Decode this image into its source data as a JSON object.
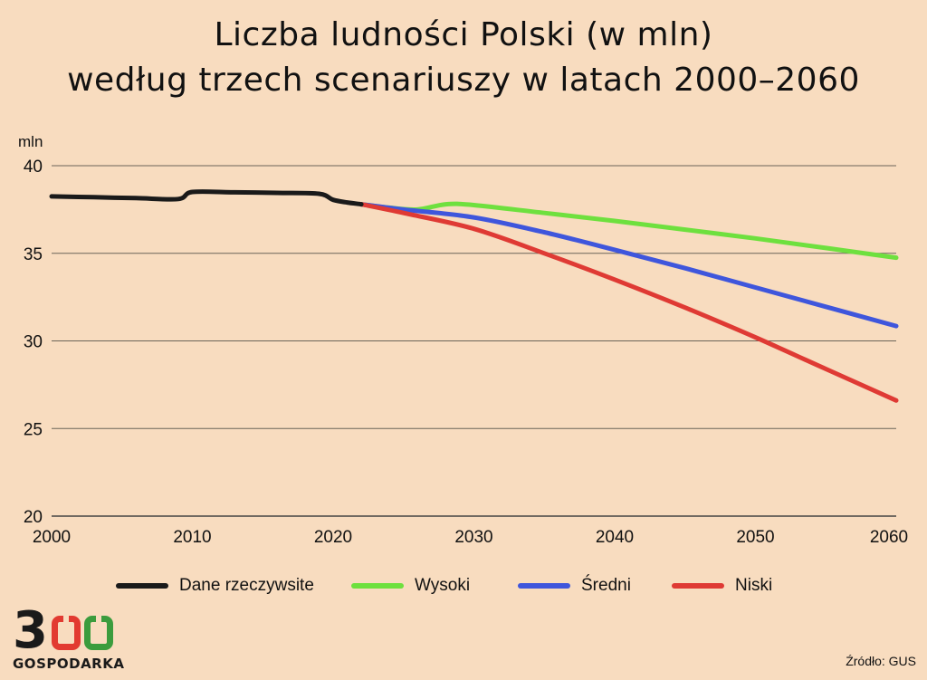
{
  "title_lines": [
    "Liczba ludności Polski (w mln)",
    "według trzech scenariuszy w latach 2000–2060"
  ],
  "logo": {
    "digit": "3",
    "text": "GOSPODARKA"
  },
  "source": "Źródło: GUS",
  "chart_data": {
    "type": "line",
    "title": "Liczba ludności Polski (w mln) według trzech scenariuszy w latach 2000–2060",
    "ylabel": "mln",
    "xlabel": "",
    "xlim": [
      2000,
      2060
    ],
    "ylim": [
      20,
      40
    ],
    "x_ticks": [
      2000,
      2010,
      2020,
      2030,
      2040,
      2050,
      2060
    ],
    "y_ticks": [
      20,
      25,
      30,
      35,
      40
    ],
    "grid": "horizontal",
    "legend_position": "bottom",
    "series": [
      {
        "name": "Dane rzeczywsite",
        "color": "#1a1a1a",
        "points": [
          [
            2000,
            38.25
          ],
          [
            2003,
            38.2
          ],
          [
            2006,
            38.15
          ],
          [
            2009,
            38.1
          ],
          [
            2010,
            38.5
          ],
          [
            2013,
            38.48
          ],
          [
            2016,
            38.45
          ],
          [
            2019,
            38.4
          ],
          [
            2020,
            38.05
          ],
          [
            2021,
            37.9
          ],
          [
            2022,
            37.8
          ]
        ]
      },
      {
        "name": "Wysoki",
        "color": "#6ee03e",
        "points": [
          [
            2022,
            37.8
          ],
          [
            2024,
            37.6
          ],
          [
            2026,
            37.5
          ],
          [
            2028,
            37.8
          ],
          [
            2030,
            37.75
          ],
          [
            2035,
            37.3
          ],
          [
            2040,
            36.85
          ],
          [
            2045,
            36.35
          ],
          [
            2050,
            35.85
          ],
          [
            2055,
            35.3
          ],
          [
            2060,
            34.75
          ]
        ]
      },
      {
        "name": "Średni",
        "color": "#3f56dc",
        "points": [
          [
            2022,
            37.8
          ],
          [
            2025,
            37.5
          ],
          [
            2030,
            37.05
          ],
          [
            2035,
            36.2
          ],
          [
            2040,
            35.2
          ],
          [
            2045,
            34.15
          ],
          [
            2050,
            33.05
          ],
          [
            2055,
            31.95
          ],
          [
            2060,
            30.85
          ]
        ]
      },
      {
        "name": "Niski",
        "color": "#df3a34",
        "points": [
          [
            2022,
            37.8
          ],
          [
            2025,
            37.3
          ],
          [
            2030,
            36.4
          ],
          [
            2035,
            35.0
          ],
          [
            2040,
            33.5
          ],
          [
            2045,
            31.9
          ],
          [
            2050,
            30.2
          ],
          [
            2055,
            28.4
          ],
          [
            2060,
            26.6
          ]
        ]
      }
    ]
  }
}
